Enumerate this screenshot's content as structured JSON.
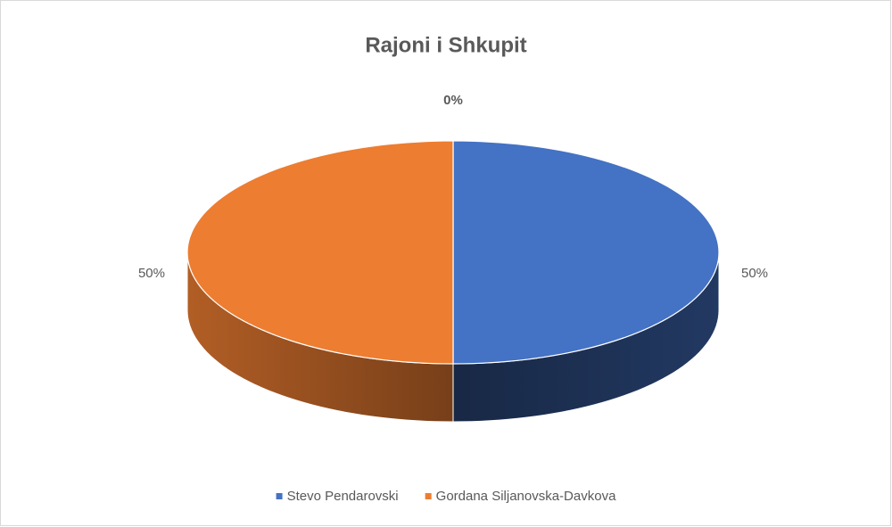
{
  "chart_data": {
    "type": "pie",
    "title": "Rajoni i Shkupit",
    "categories": [
      "Stevo Pendarovski",
      "Gordana Siljanovska-Davkova",
      null
    ],
    "values": [
      50,
      50,
      0
    ],
    "value_labels": [
      "50%",
      "50%",
      "0%"
    ],
    "colors": [
      "#4472c4",
      "#ed7d31",
      "#a5a5a5"
    ],
    "legend": "bottom"
  }
}
